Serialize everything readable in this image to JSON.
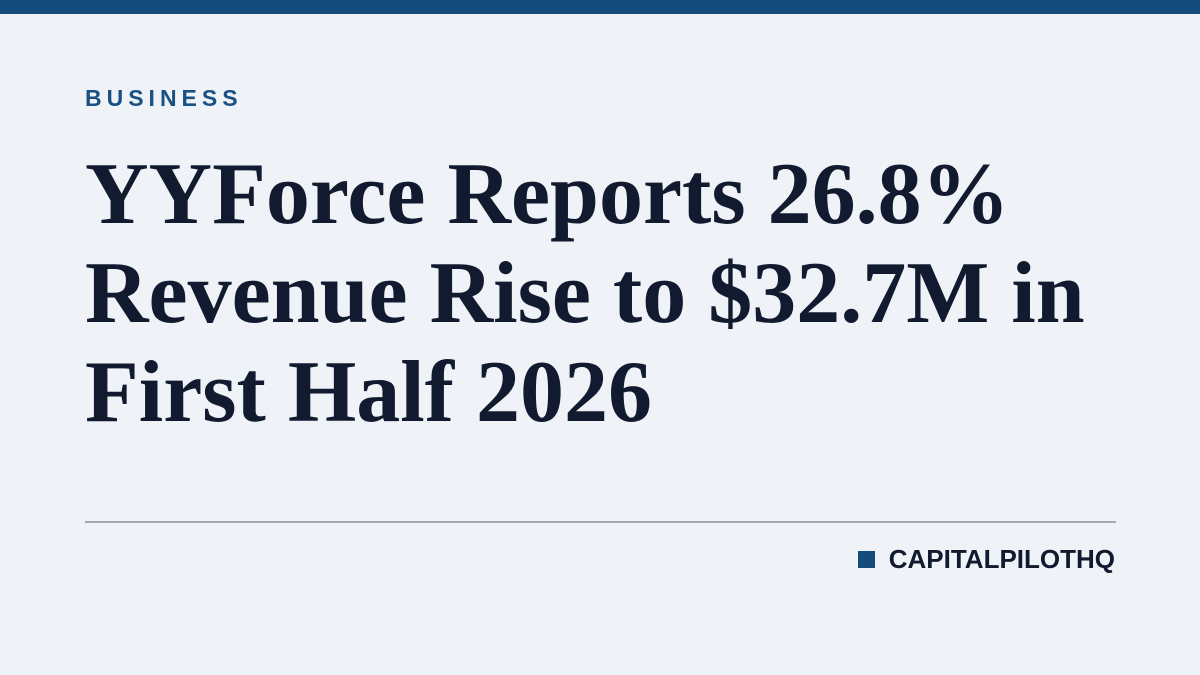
{
  "header": {
    "category": "BUSINESS",
    "title": "YYForce Reports 26.8% Revenue Rise to $32.7M in First Half 2026"
  },
  "footer": {
    "source": "CAPITALPILOTHQ"
  }
}
